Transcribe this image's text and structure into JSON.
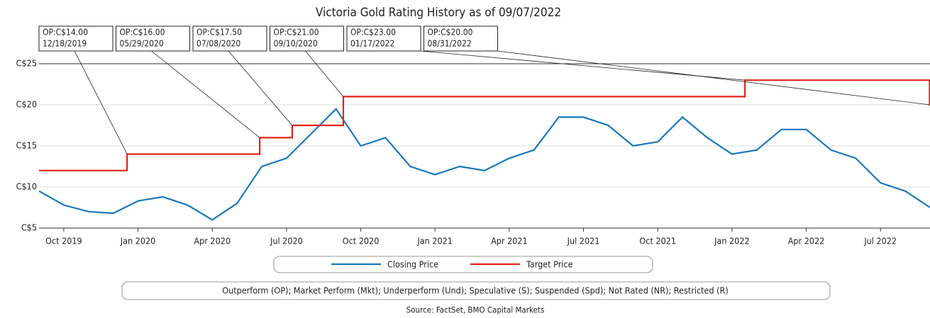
{
  "chart_data": {
    "type": "line",
    "title": "Victoria Gold Rating History as of 09/07/2022",
    "x": [
      "2019-09",
      "2019-10",
      "2019-11",
      "2019-12",
      "2020-01",
      "2020-02",
      "2020-03",
      "2020-04",
      "2020-05",
      "2020-06",
      "2020-07",
      "2020-08",
      "2020-09",
      "2020-10",
      "2020-11",
      "2020-12",
      "2021-01",
      "2021-02",
      "2021-03",
      "2021-04",
      "2021-05",
      "2021-06",
      "2021-07",
      "2021-08",
      "2021-09",
      "2021-10",
      "2021-11",
      "2021-12",
      "2022-01",
      "2022-02",
      "2022-03",
      "2022-04",
      "2022-05",
      "2022-06",
      "2022-07",
      "2022-08",
      "2022-09"
    ],
    "series": [
      {
        "name": "Closing Price",
        "color": "#1a78bd",
        "values": [
          9.5,
          7.8,
          7.0,
          6.8,
          8.3,
          8.8,
          7.8,
          6.0,
          8.0,
          12.5,
          13.5,
          16.5,
          19.5,
          15.0,
          16.0,
          12.5,
          11.5,
          12.5,
          12.0,
          13.5,
          14.5,
          18.5,
          18.5,
          17.5,
          15.0,
          15.5,
          18.5,
          16.0,
          14.0,
          14.5,
          17.0,
          17.0,
          14.5,
          13.5,
          10.5,
          9.5,
          7.5
        ]
      },
      {
        "name": "Target Price",
        "color": "#e2231a",
        "step": true,
        "x": [
          "2019-09",
          "2019-12-18",
          "2020-05-29",
          "2020-07-08",
          "2020-09-10",
          "2022-01-17",
          "2022-08-31"
        ],
        "values": [
          12,
          14,
          16,
          17.5,
          21,
          23,
          20
        ]
      }
    ],
    "annotations": [
      {
        "label": "OP:C$14.00",
        "date": "12/18/2019"
      },
      {
        "label": "OP:C$16.00",
        "date": "05/29/2020"
      },
      {
        "label": "OP:C$17.50",
        "date": "07/08/2020"
      },
      {
        "label": "OP:C$21.00",
        "date": "09/10/2020"
      },
      {
        "label": "OP:C$23.00",
        "date": "01/17/2022"
      },
      {
        "label": "OP:C$20.00",
        "date": "08/31/2022"
      }
    ],
    "xlim": [
      "2019-09",
      "2022-09"
    ],
    "xticks": [
      {
        "value": "2019-10",
        "label": "Oct 2019"
      },
      {
        "value": "2020-01",
        "label": "Jan 2020"
      },
      {
        "value": "2020-04",
        "label": "Apr 2020"
      },
      {
        "value": "2020-07",
        "label": "Jul 2020"
      },
      {
        "value": "2020-10",
        "label": "Oct 2020"
      },
      {
        "value": "2021-01",
        "label": "Jan 2021"
      },
      {
        "value": "2021-04",
        "label": "Apr 2021"
      },
      {
        "value": "2021-07",
        "label": "Jul 2021"
      },
      {
        "value": "2021-10",
        "label": "Oct 2021"
      },
      {
        "value": "2022-01",
        "label": "Jan 2022"
      },
      {
        "value": "2022-04",
        "label": "Apr 2022"
      },
      {
        "value": "2022-07",
        "label": "Jul 2022"
      }
    ],
    "ylim": [
      5,
      25
    ],
    "yticks": [
      {
        "value": 5,
        "label": "C$5"
      },
      {
        "value": 10,
        "label": "C$10"
      },
      {
        "value": 15,
        "label": "C$15"
      },
      {
        "value": 20,
        "label": "C$20"
      },
      {
        "value": 25,
        "label": "C$25"
      }
    ],
    "grid": true,
    "legend_note": "Outperform (OP); Market Perform (Mkt); Underperform (Und); Speculative (S); Suspended (Spd); Not Rated (NR); Restricted (R)",
    "source": "Source: FactSet, BMO Capital Markets"
  }
}
